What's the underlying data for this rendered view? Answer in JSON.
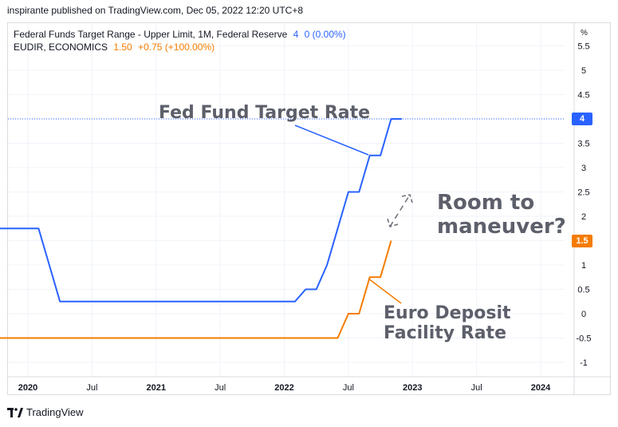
{
  "publisher": "inspirante published on TradingView.com, Dec 05, 2022 12:20 UTC+8",
  "legend": [
    {
      "name": "Federal Funds Target Range - Upper Limit, 1M, Federal Reserve",
      "value": "4",
      "change": "0 (0.00%)",
      "color": "#2962ff"
    },
    {
      "name": "EUDIR, ECONOMICS",
      "value": "1.50",
      "change": "+0.75 (+100.00%)",
      "color": "#f57c00"
    }
  ],
  "footer": {
    "brand": "TradingView"
  },
  "annotations": {
    "fed": "Fed Fund Target Rate",
    "room_line1": "Room to",
    "room_line2": "maneuver?",
    "euro_line1": "Euro Deposit",
    "euro_line2": "Facility Rate"
  },
  "chart_data": {
    "type": "line",
    "y_unit": "%",
    "ylim": [
      -1.25,
      5.75
    ],
    "yticks": [
      5.5,
      5,
      4.5,
      4,
      3.5,
      3,
      2.5,
      2,
      1.5,
      1,
      0.5,
      0,
      -0.5,
      -1
    ],
    "yticklabels": [
      "5.5",
      "5",
      "4.5",
      "4",
      "3.5",
      "3",
      "2.5",
      "2",
      "1.5",
      "1",
      "0.5",
      "0",
      "-0.5",
      "-1"
    ],
    "xlim": [
      "2019-08",
      "2024-06"
    ],
    "xticks": [
      {
        "x": "2020-01",
        "label": "2020",
        "bold": true
      },
      {
        "x": "2020-07",
        "label": "Jul",
        "bold": false
      },
      {
        "x": "2021-01",
        "label": "2021",
        "bold": true
      },
      {
        "x": "2021-07",
        "label": "Jul",
        "bold": false
      },
      {
        "x": "2022-01",
        "label": "2022",
        "bold": true
      },
      {
        "x": "2022-07",
        "label": "Jul",
        "bold": false
      },
      {
        "x": "2023-01",
        "label": "2023",
        "bold": true
      },
      {
        "x": "2023-07",
        "label": "Jul",
        "bold": false
      },
      {
        "x": "2024-01",
        "label": "2024",
        "bold": true
      }
    ],
    "grid": true,
    "series": [
      {
        "name": "Federal Funds Target Range - Upper Limit, 1M, Federal Reserve",
        "color": "#2962ff",
        "last_label": "4",
        "points": [
          [
            "2019-08",
            1.75
          ],
          [
            "2020-02",
            1.75
          ],
          [
            "2020-03",
            1.0
          ],
          [
            "2020-04",
            0.25
          ],
          [
            "2022-02",
            0.25
          ],
          [
            "2022-03",
            0.5
          ],
          [
            "2022-04",
            0.5
          ],
          [
            "2022-05",
            1.0
          ],
          [
            "2022-06",
            1.75
          ],
          [
            "2022-07",
            2.5
          ],
          [
            "2022-08",
            2.5
          ],
          [
            "2022-09",
            3.25
          ],
          [
            "2022-10",
            3.25
          ],
          [
            "2022-11",
            4.0
          ],
          [
            "2022-12",
            4.0
          ]
        ]
      },
      {
        "name": "EUDIR, ECONOMICS",
        "color": "#f57c00",
        "last_label": "1.5",
        "points": [
          [
            "2019-08",
            -0.5
          ],
          [
            "2022-06",
            -0.5
          ],
          [
            "2022-07",
            0.0
          ],
          [
            "2022-08",
            0.0
          ],
          [
            "2022-09",
            0.75
          ],
          [
            "2022-10",
            0.75
          ],
          [
            "2022-11",
            1.5
          ]
        ]
      }
    ]
  }
}
